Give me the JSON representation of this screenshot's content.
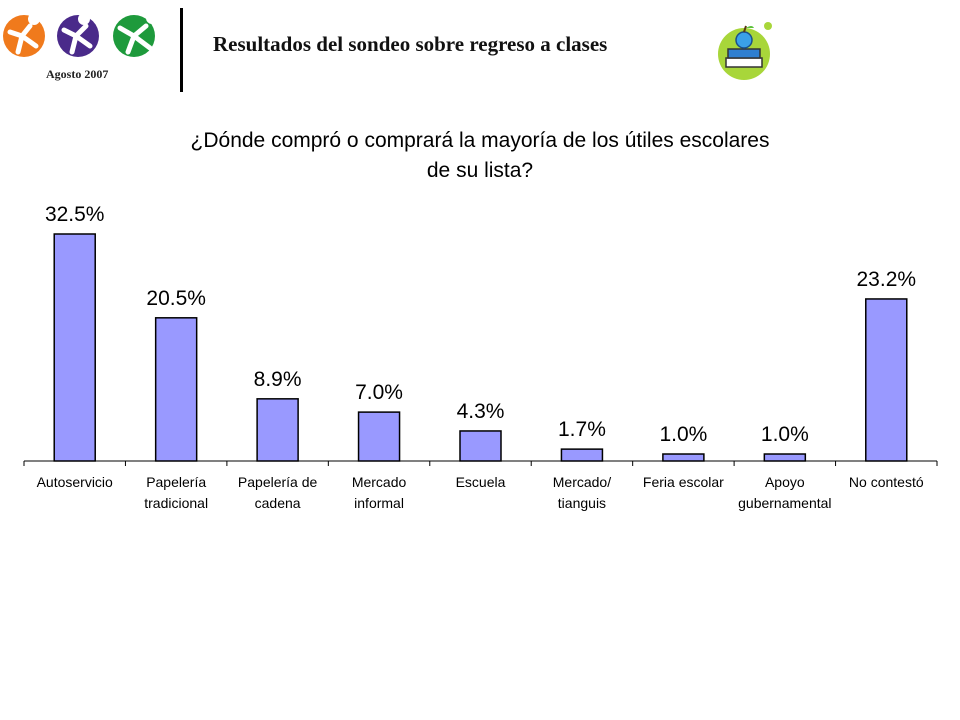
{
  "header": {
    "date": "Agosto 2007",
    "title": "Resultados del sondeo sobre regreso a clases"
  },
  "chart_data": {
    "type": "bar",
    "title_lines": [
      "¿Dónde compró o comprará la mayoría de los útiles escolares",
      "de su lista?"
    ],
    "categories": [
      [
        "Autoservicio"
      ],
      [
        "Papelería",
        "tradicional"
      ],
      [
        "Papelería de",
        "cadena"
      ],
      [
        "Mercado",
        "informal"
      ],
      [
        "Escuela"
      ],
      [
        "Mercado/",
        "tianguis"
      ],
      [
        "Feria escolar"
      ],
      [
        "Apoyo",
        "gubernamental"
      ],
      [
        "No contestó"
      ]
    ],
    "values": [
      32.5,
      20.5,
      8.9,
      7.0,
      4.3,
      1.7,
      1.0,
      1.0,
      23.2
    ],
    "value_labels": [
      "32.5%",
      "20.5%",
      "8.9%",
      "7.0%",
      "4.3%",
      "1.7%",
      "1.0%",
      "1.0%",
      "23.2%"
    ],
    "ylim": [
      0,
      35
    ],
    "grid": false,
    "bar_color": "#9999ff",
    "bar_border": "#000000"
  }
}
